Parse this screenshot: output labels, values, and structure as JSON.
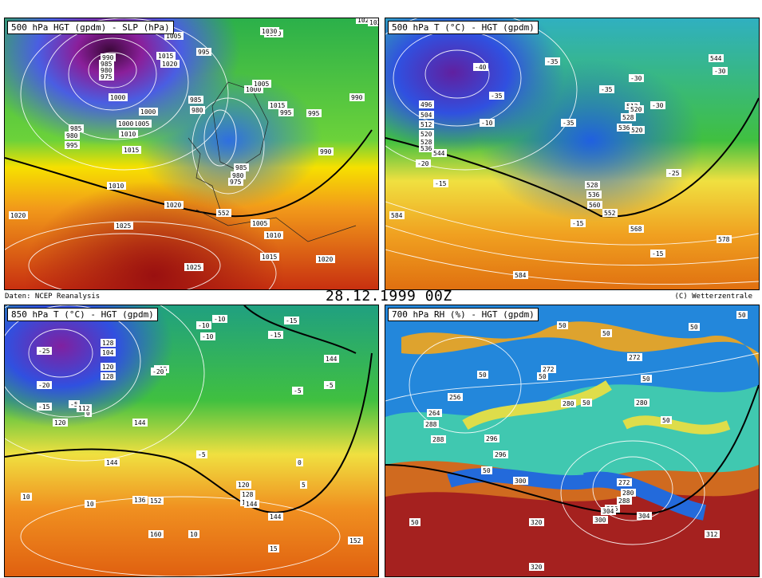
{
  "footer": {
    "source": "Daten: NCEP Reanalysis",
    "datetime": "28.12.1999 00Z",
    "copyright": "(C) Wetterzentrale"
  },
  "panels": [
    {
      "title": "500 hPa HGT (gpdm) - SLP (hPa)",
      "labels": [
        "1030",
        "1025",
        "1005",
        "995",
        "990",
        "985",
        "980",
        "975",
        "1010",
        "1015",
        "1020",
        "1000",
        "1005",
        "985",
        "980",
        "1000",
        "1015",
        "990",
        "995",
        "552",
        "1005",
        "1010",
        "1015",
        "1020",
        "1025",
        "1010",
        "1020",
        "1025",
        "980",
        "985",
        "995",
        "1000",
        "1010",
        "1015",
        "1020",
        "1000",
        "975",
        "980",
        "985",
        "990",
        "995",
        "1005",
        "1030",
        "1025"
      ]
    },
    {
      "title": "500 hPa T (°C) - HGT (gpdm)",
      "labels": [
        "-40",
        "-35",
        "-35",
        "-35",
        "-35",
        "-30",
        "-30",
        "-30",
        "-25",
        "-20",
        "-15",
        "-15",
        "-15",
        "-10",
        "496",
        "504",
        "512",
        "520",
        "528",
        "536",
        "544",
        "512",
        "520",
        "528",
        "536",
        "552",
        "560",
        "568",
        "578",
        "584",
        "584",
        "544",
        "520",
        "528",
        "536"
      ]
    },
    {
      "title": "850 hPa T (°C) - HGT (gpdm)",
      "labels": [
        "-25",
        "-20",
        "-15",
        "-10",
        "-10",
        "-15",
        "-20",
        "-5",
        "-5",
        "-5",
        "-5",
        "0",
        "0",
        "5",
        "10",
        "10",
        "10",
        "15",
        "104",
        "112",
        "120",
        "128",
        "120",
        "128",
        "136",
        "144",
        "144",
        "144",
        "144",
        "152",
        "160",
        "152",
        "120",
        "128",
        "136",
        "144",
        "-10",
        "-15",
        "-15"
      ]
    },
    {
      "title": "700 hPa RH (%) - HGT (gpdm)",
      "labels": [
        "50",
        "50",
        "50",
        "50",
        "50",
        "50",
        "50",
        "50",
        "50",
        "50",
        "50",
        "50",
        "256",
        "264",
        "272",
        "280",
        "288",
        "296",
        "272",
        "280",
        "288",
        "296",
        "304",
        "300",
        "312",
        "320",
        "320",
        "272",
        "280",
        "288",
        "296",
        "300",
        "304"
      ]
    }
  ]
}
